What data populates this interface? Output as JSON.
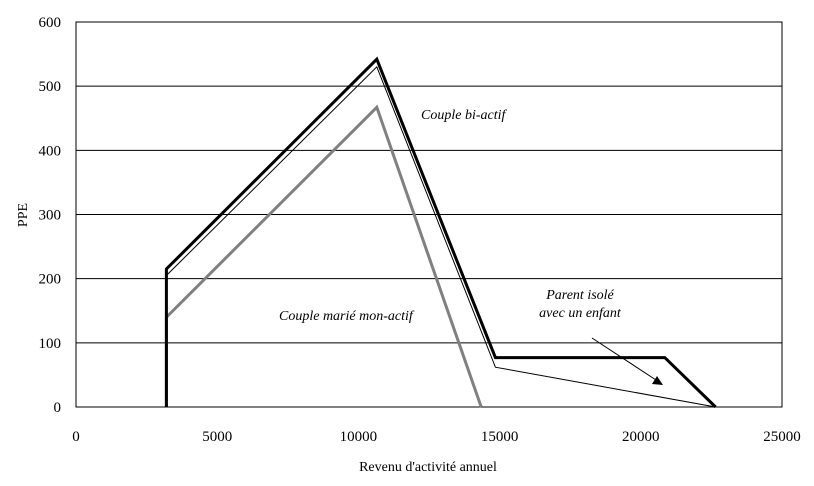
{
  "chart_data": {
    "type": "line",
    "title": "",
    "xlabel": "Revenu d'activité annuel",
    "ylabel": "PPE",
    "xlim": [
      0,
      25000
    ],
    "ylim": [
      0,
      600
    ],
    "x_ticks": [
      0,
      5000,
      10000,
      15000,
      20000,
      25000
    ],
    "y_ticks": [
      0,
      100,
      200,
      300,
      400,
      500,
      600
    ],
    "grid": "horizontal",
    "legend": "none",
    "series": [
      {
        "name": "Couple bi-actif",
        "color": "#000000",
        "points": [
          [
            3200,
            0
          ],
          [
            3200,
            215
          ],
          [
            10650,
            542
          ],
          [
            14850,
            77
          ],
          [
            20850,
            77
          ],
          [
            22650,
            0
          ]
        ]
      },
      {
        "name": "Parent isolé avec un enfant",
        "color": "#000000",
        "points": [
          [
            3200,
            0
          ],
          [
            3200,
            205
          ],
          [
            10650,
            530
          ],
          [
            14850,
            62
          ],
          [
            22650,
            0
          ]
        ]
      },
      {
        "name": "Couple marié mon-actif",
        "color": "#808080",
        "points": [
          [
            3200,
            0
          ],
          [
            3200,
            140
          ],
          [
            10650,
            467
          ],
          [
            14350,
            0
          ]
        ]
      }
    ],
    "annotations": [
      {
        "text": "Couple bi-actif"
      },
      {
        "text": "Couple marié mon-actif"
      },
      {
        "lines": [
          "Parent isolé",
          "avec un enfant"
        ]
      }
    ]
  }
}
